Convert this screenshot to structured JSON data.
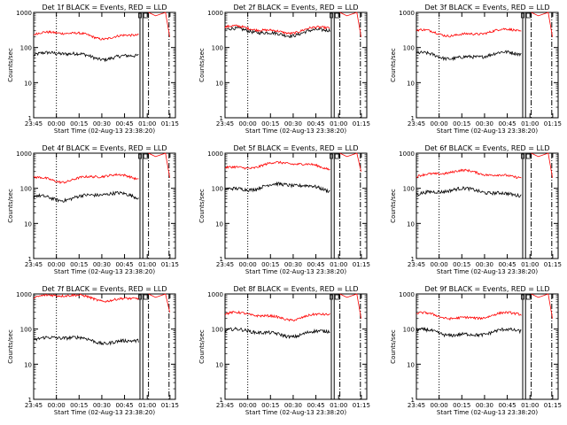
{
  "chart_data": {
    "type": "line",
    "layout": "3x3 grid of panels",
    "x_tick_labels": [
      "23:45",
      "00:00",
      "00:15",
      "00:30",
      "00:45",
      "01:00",
      "01:15"
    ],
    "xlabel": "Start Time (02-Aug-13 23:38:20)",
    "ylabel": "Counts/sec",
    "y_scale": "log",
    "ylim": [
      1,
      1000
    ],
    "y_tick_labels": [
      "1",
      "10",
      "100",
      "1000"
    ],
    "series_colors": {
      "events": "#000000",
      "lld": "#ff0000"
    },
    "panels": [
      {
        "title": "Det 1f BLACK = Events, RED = LLD",
        "events": 60,
        "lld": 230
      },
      {
        "title": "Det 2f BLACK = Events, RED = LLD",
        "events": 280,
        "lld": 330
      },
      {
        "title": "Det 3f BLACK = Events, RED = LLD",
        "events": 60,
        "lld": 270
      },
      {
        "title": "Det 4f BLACK = Events, RED = LLD",
        "events": 60,
        "lld": 200
      },
      {
        "title": "Det 5f BLACK = Events, RED = LLD",
        "events": 110,
        "lld": 450
      },
      {
        "title": "Det 6f BLACK = Events, RED = LLD",
        "events": 80,
        "lld": 260
      },
      {
        "title": "Det 7f BLACK = Events, RED = LLD",
        "events": 50,
        "lld": 800
      },
      {
        "title": "Det 8f BLACK = Events, RED = LLD",
        "events": 80,
        "lld": 240
      },
      {
        "title": "Det 9f BLACK = Events, RED = LLD",
        "events": 80,
        "lld": 240
      }
    ]
  }
}
